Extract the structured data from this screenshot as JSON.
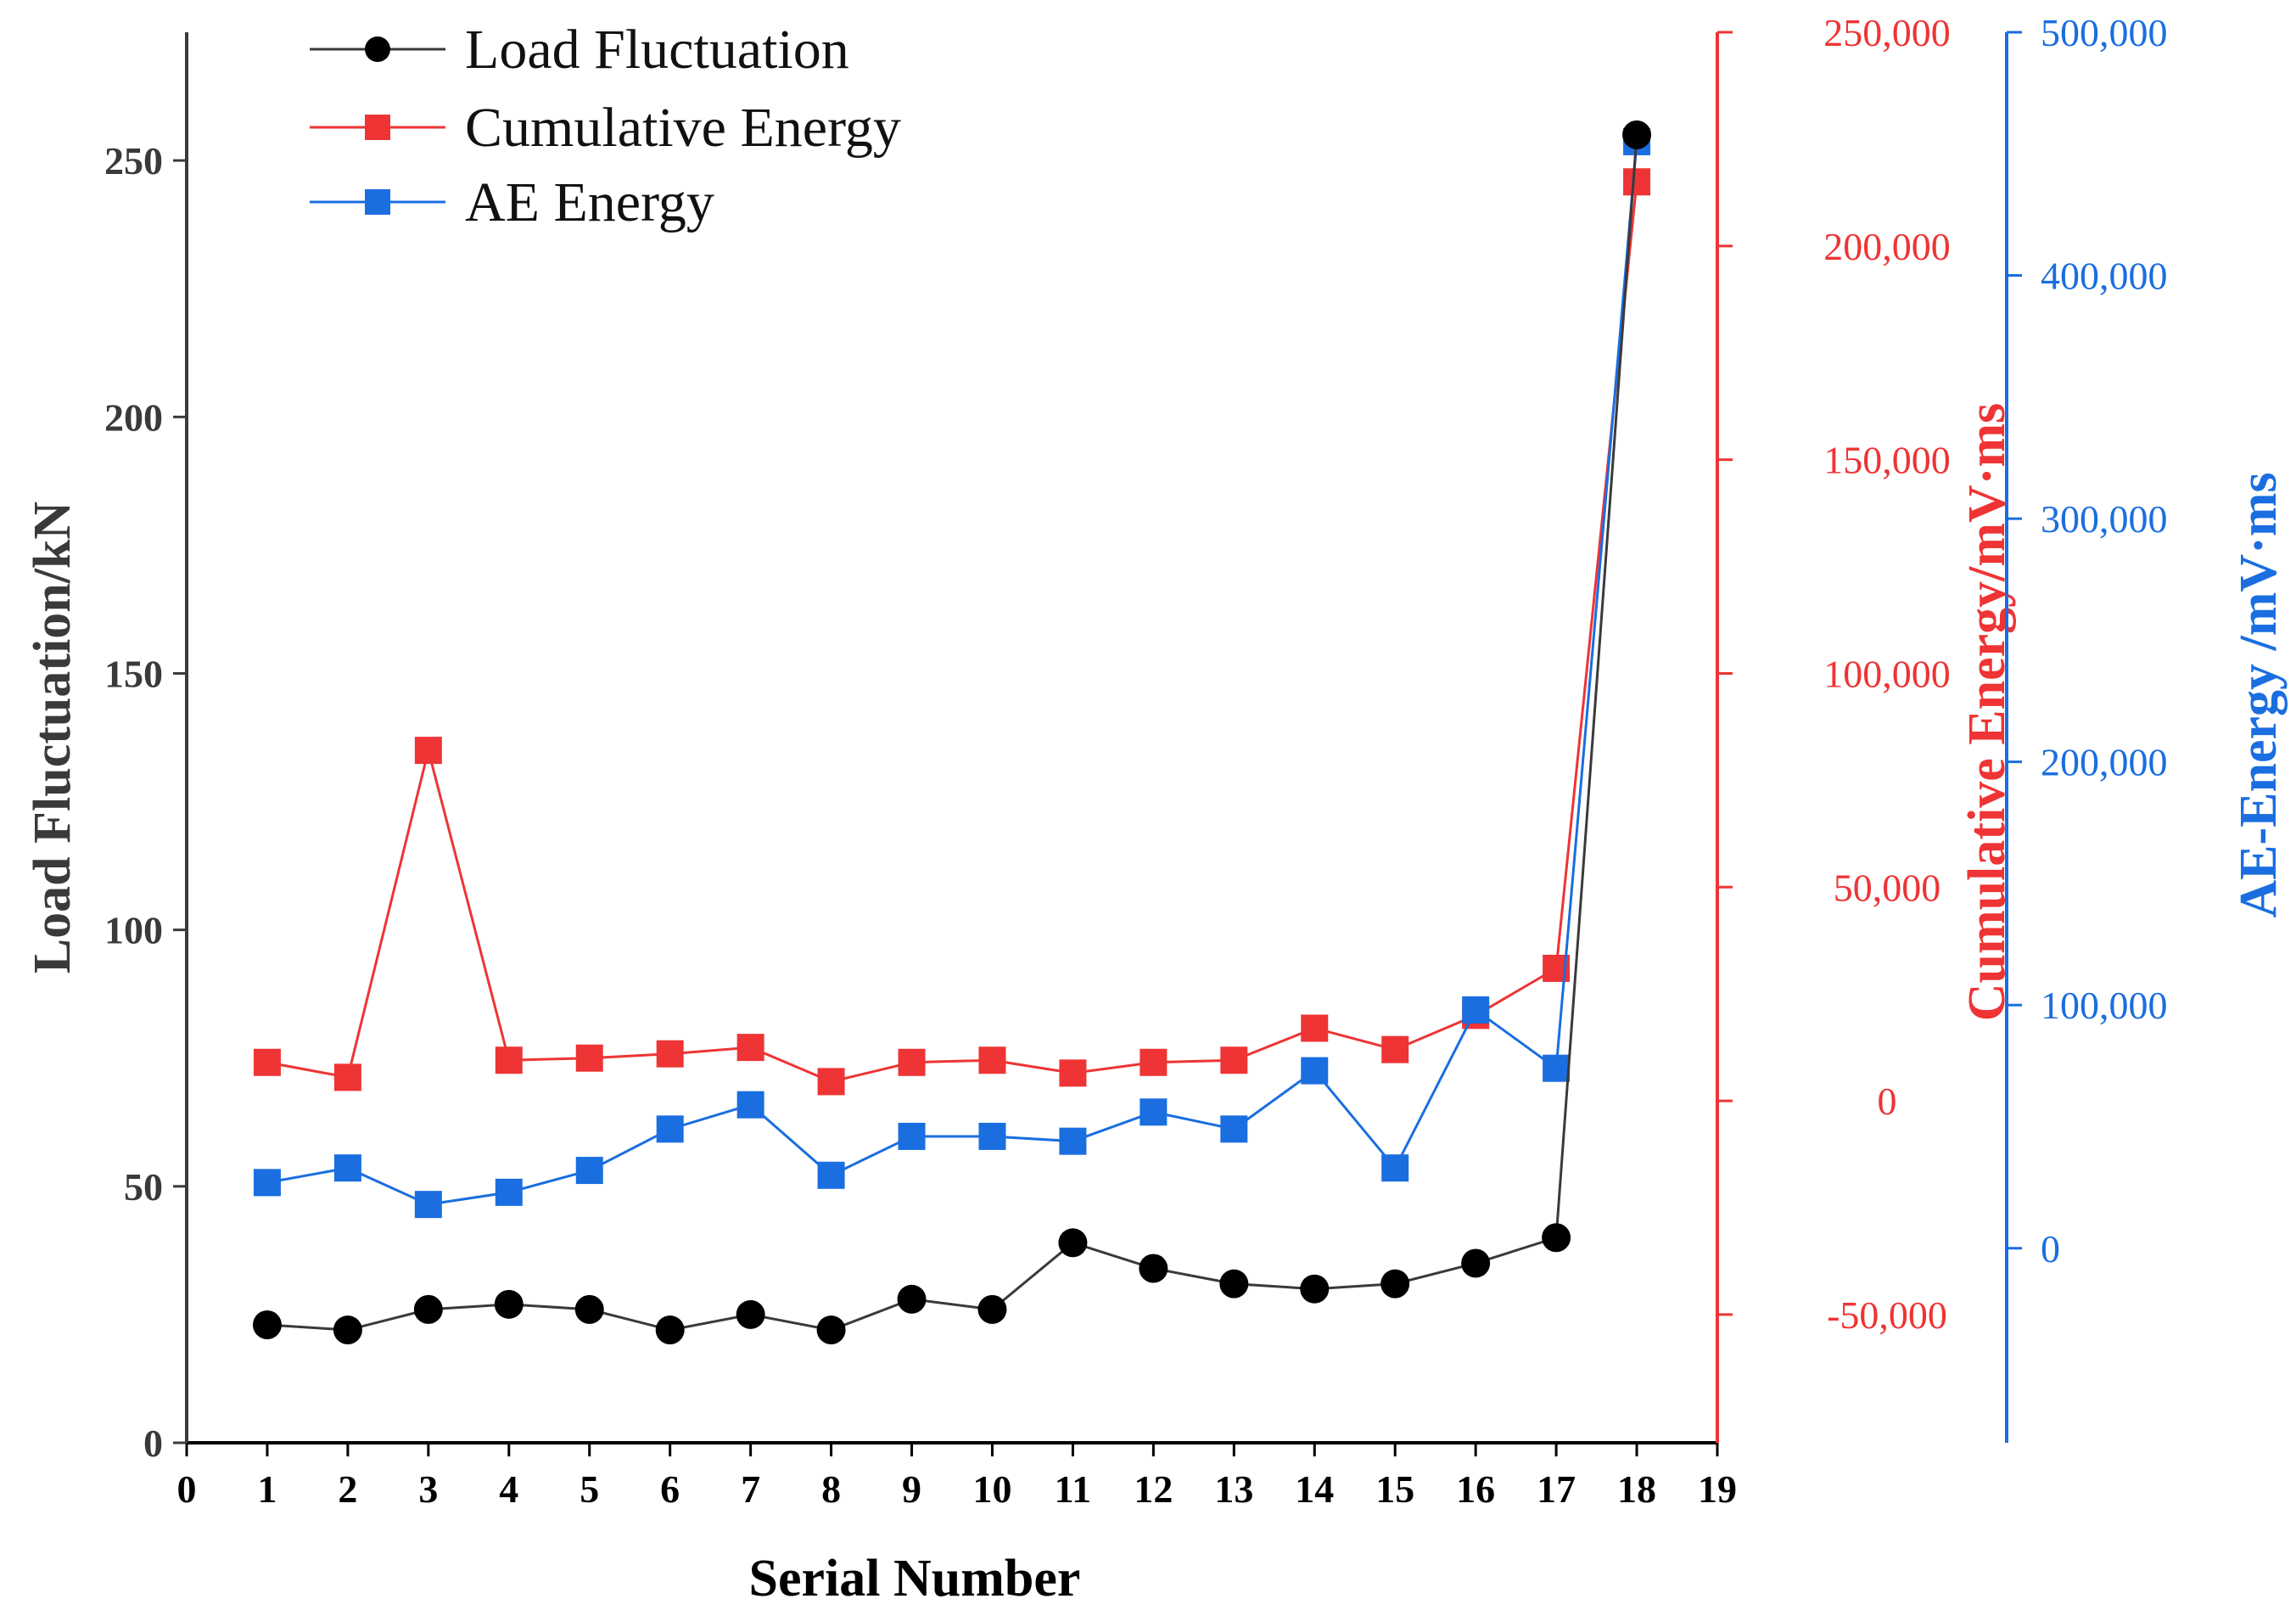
{
  "chart_data": {
    "type": "line",
    "xlabel": "Serial Number",
    "x_ticks": [
      "0",
      "1",
      "2",
      "3",
      "4",
      "5",
      "6",
      "7",
      "8",
      "9",
      "10",
      "11",
      "12",
      "13",
      "14",
      "15",
      "16",
      "17",
      "18",
      "19"
    ],
    "x": [
      1,
      2,
      3,
      4,
      5,
      6,
      7,
      8,
      9,
      10,
      11,
      12,
      13,
      14,
      15,
      16,
      17,
      18
    ],
    "xlim": [
      0,
      19
    ],
    "axes": {
      "left": {
        "label": "Load Fluctuation/kN",
        "ylim": [
          0,
          275
        ],
        "ticks": [
          0,
          50,
          100,
          150,
          200,
          250
        ],
        "tick_labels": [
          "0",
          "50",
          "100",
          "150",
          "200",
          "250"
        ],
        "color": "#3a3a3a"
      },
      "right1": {
        "label": "Cumulative Energy/mV·ms",
        "ylim": [
          -80000,
          250000
        ],
        "ticks": [
          -50000,
          0,
          50000,
          100000,
          150000,
          200000,
          250000
        ],
        "tick_labels": [
          "-50,000",
          "0",
          "50,000",
          "100,000",
          "150,000",
          "200,000",
          "250,000"
        ],
        "color": "#ee3434"
      },
      "right2": {
        "label": "AE-Energy /mV·ms",
        "ylim": [
          -80000,
          500000
        ],
        "ticks": [
          0,
          100000,
          200000,
          300000,
          400000,
          500000
        ],
        "tick_labels": [
          "0",
          "100,000",
          "200,000",
          "300,000",
          "400,000",
          "500,000"
        ],
        "color": "#1a6ee0"
      }
    },
    "series": [
      {
        "name": "Load Fluctuation",
        "axis": "left",
        "marker": "circle",
        "color": "#000000",
        "line_color": "#3a3a3a",
        "values": [
          23,
          22,
          26,
          27,
          26,
          22,
          25,
          22,
          28,
          26,
          39,
          34,
          31,
          30,
          31,
          35,
          40,
          255
        ]
      },
      {
        "name": "Cumulative Energy",
        "axis": "right1",
        "marker": "square",
        "color": "#ee3434",
        "line_color": "#ee3434",
        "values": [
          9000,
          5500,
          82000,
          9500,
          10000,
          11000,
          12500,
          4500,
          9000,
          9500,
          6500,
          9000,
          9500,
          17000,
          12000,
          20000,
          31000,
          215000
        ]
      },
      {
        "name": "AE Energy",
        "axis": "right2",
        "marker": "square",
        "color": "#1a6ee0",
        "line_color": "#1a6ee0",
        "values": [
          27000,
          33000,
          18000,
          23000,
          32000,
          49000,
          59000,
          30000,
          46000,
          46000,
          44000,
          56000,
          49000,
          73000,
          33000,
          98000,
          74000,
          455000
        ]
      }
    ],
    "legend": {
      "position": "top-left",
      "entries": [
        "Load Fluctuation",
        "Cumulative Energy",
        "AE Energy"
      ]
    }
  }
}
